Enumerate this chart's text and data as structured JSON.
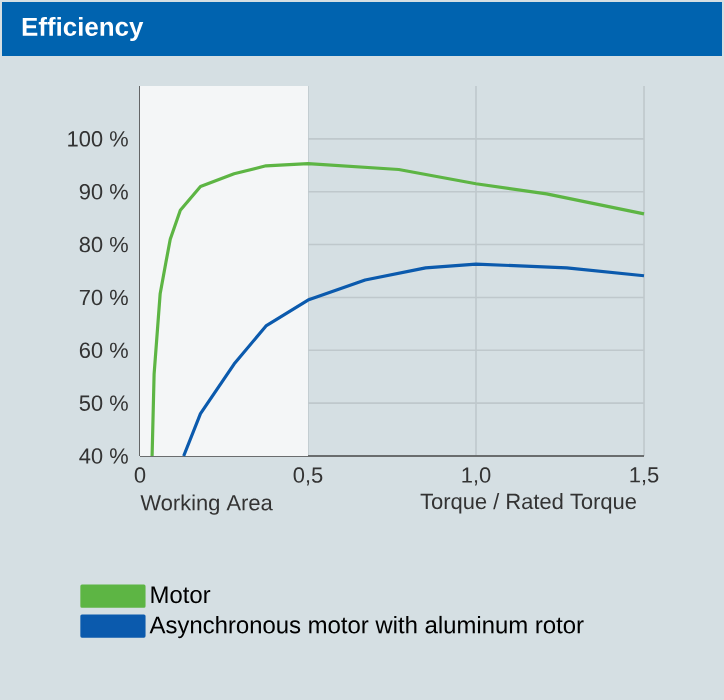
{
  "chart_data": {
    "type": "line",
    "title": "Efficiency",
    "xlabel": "Torque / Rated Torque",
    "xlim": [
      0,
      1.5
    ],
    "ylim": [
      40,
      110
    ],
    "xticks": [
      {
        "value": 0,
        "label": "0"
      },
      {
        "value": 0.5,
        "label": "0,5"
      },
      {
        "value": 1.0,
        "label": "1,0"
      },
      {
        "value": 1.5,
        "label": "1,5"
      }
    ],
    "yticks": [
      {
        "value": 40,
        "label": "40 %"
      },
      {
        "value": 50,
        "label": "50 %"
      },
      {
        "value": 60,
        "label": "60 %"
      },
      {
        "value": 70,
        "label": "70 %"
      },
      {
        "value": 80,
        "label": "80 %"
      },
      {
        "value": 90,
        "label": "90 %"
      },
      {
        "value": 100,
        "label": "100 %"
      }
    ],
    "grid": true,
    "legend": "bottom",
    "marker": "none",
    "line_style": "solid",
    "bands": [
      {
        "axis": "x",
        "from": 0,
        "to": 0.5,
        "label": "Working Area",
        "color": "#f4f6f7"
      }
    ],
    "series": [
      {
        "name": "Motor",
        "color": "#5db544",
        "x": [
          0.036,
          0.042,
          0.06,
          0.077,
          0.09,
          0.12,
          0.18,
          0.28,
          0.375,
          0.5,
          0.77,
          1.0,
          1.21,
          1.5
        ],
        "values": [
          40,
          55.5,
          70.7,
          76.6,
          81,
          86.5,
          91,
          93.4,
          94.9,
          95.3,
          94.2,
          91.5,
          89.6,
          85.8
        ]
      },
      {
        "name": "Asynchronous motor with aluminum rotor",
        "color": "#0b5aad",
        "x": [
          0.13,
          0.18,
          0.28,
          0.375,
          0.5,
          0.67,
          0.85,
          1.0,
          1.27,
          1.5
        ],
        "values": [
          40,
          48,
          57.4,
          64.6,
          69.5,
          73.3,
          75.6,
          76.3,
          75.6,
          74.1
        ]
      }
    ]
  }
}
